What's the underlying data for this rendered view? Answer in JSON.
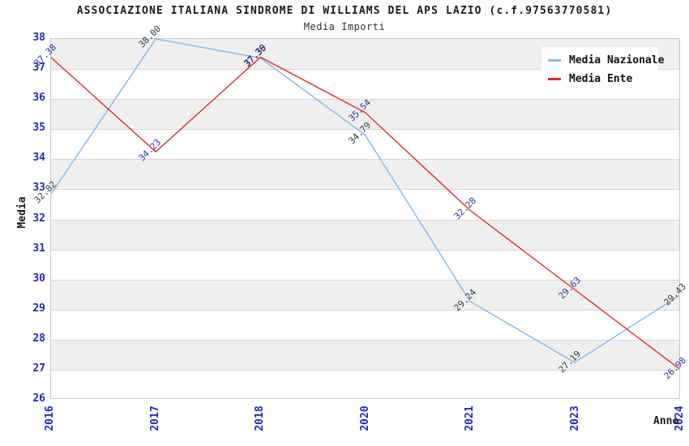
{
  "chart_data": {
    "type": "line",
    "title": "ASSOCIAZIONE ITALIANA SINDROME DI WILLIAMS DEL APS LAZIO (c.f.97563770581)",
    "subtitle": "Media Importi",
    "xlabel": "Anno",
    "ylabel": "Media",
    "categories": [
      "2016",
      "2017",
      "2018",
      "2020",
      "2021",
      "2023",
      "2024"
    ],
    "ylim": [
      26,
      38
    ],
    "ytick_step": 1,
    "grid": true,
    "legend_position": "top-right",
    "series": [
      {
        "name": "Media Nazionale",
        "color": "#85b7e8",
        "label_color": "#3a3a3a",
        "values": [
          32.82,
          38.0,
          37.36,
          34.79,
          29.24,
          27.19,
          29.43
        ],
        "point_labels": [
          "32.82",
          "38.00",
          "37.36",
          "34.79",
          "29.24",
          "27.19",
          "29.43"
        ]
      },
      {
        "name": "Media Ente",
        "color": "#e02a2a",
        "label_color": "#333399",
        "values": [
          37.38,
          34.23,
          37.39,
          35.54,
          32.28,
          29.63,
          26.98
        ],
        "point_labels": [
          "37.38",
          "34.23",
          "37.39",
          "35.54",
          "32.28",
          "29.63",
          "26.98"
        ]
      }
    ],
    "colors": {
      "tick_label": "#2424cc",
      "band": "#efefef",
      "gridline": "#d6d6d6",
      "plot_border": "#c9c9c9"
    }
  }
}
